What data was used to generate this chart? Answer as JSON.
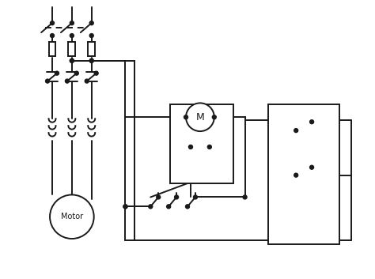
{
  "bg_color": "#ffffff",
  "line_color": "#1a1a1a",
  "lw": 1.4,
  "fig_width": 4.74,
  "fig_height": 3.53,
  "dpi": 100
}
